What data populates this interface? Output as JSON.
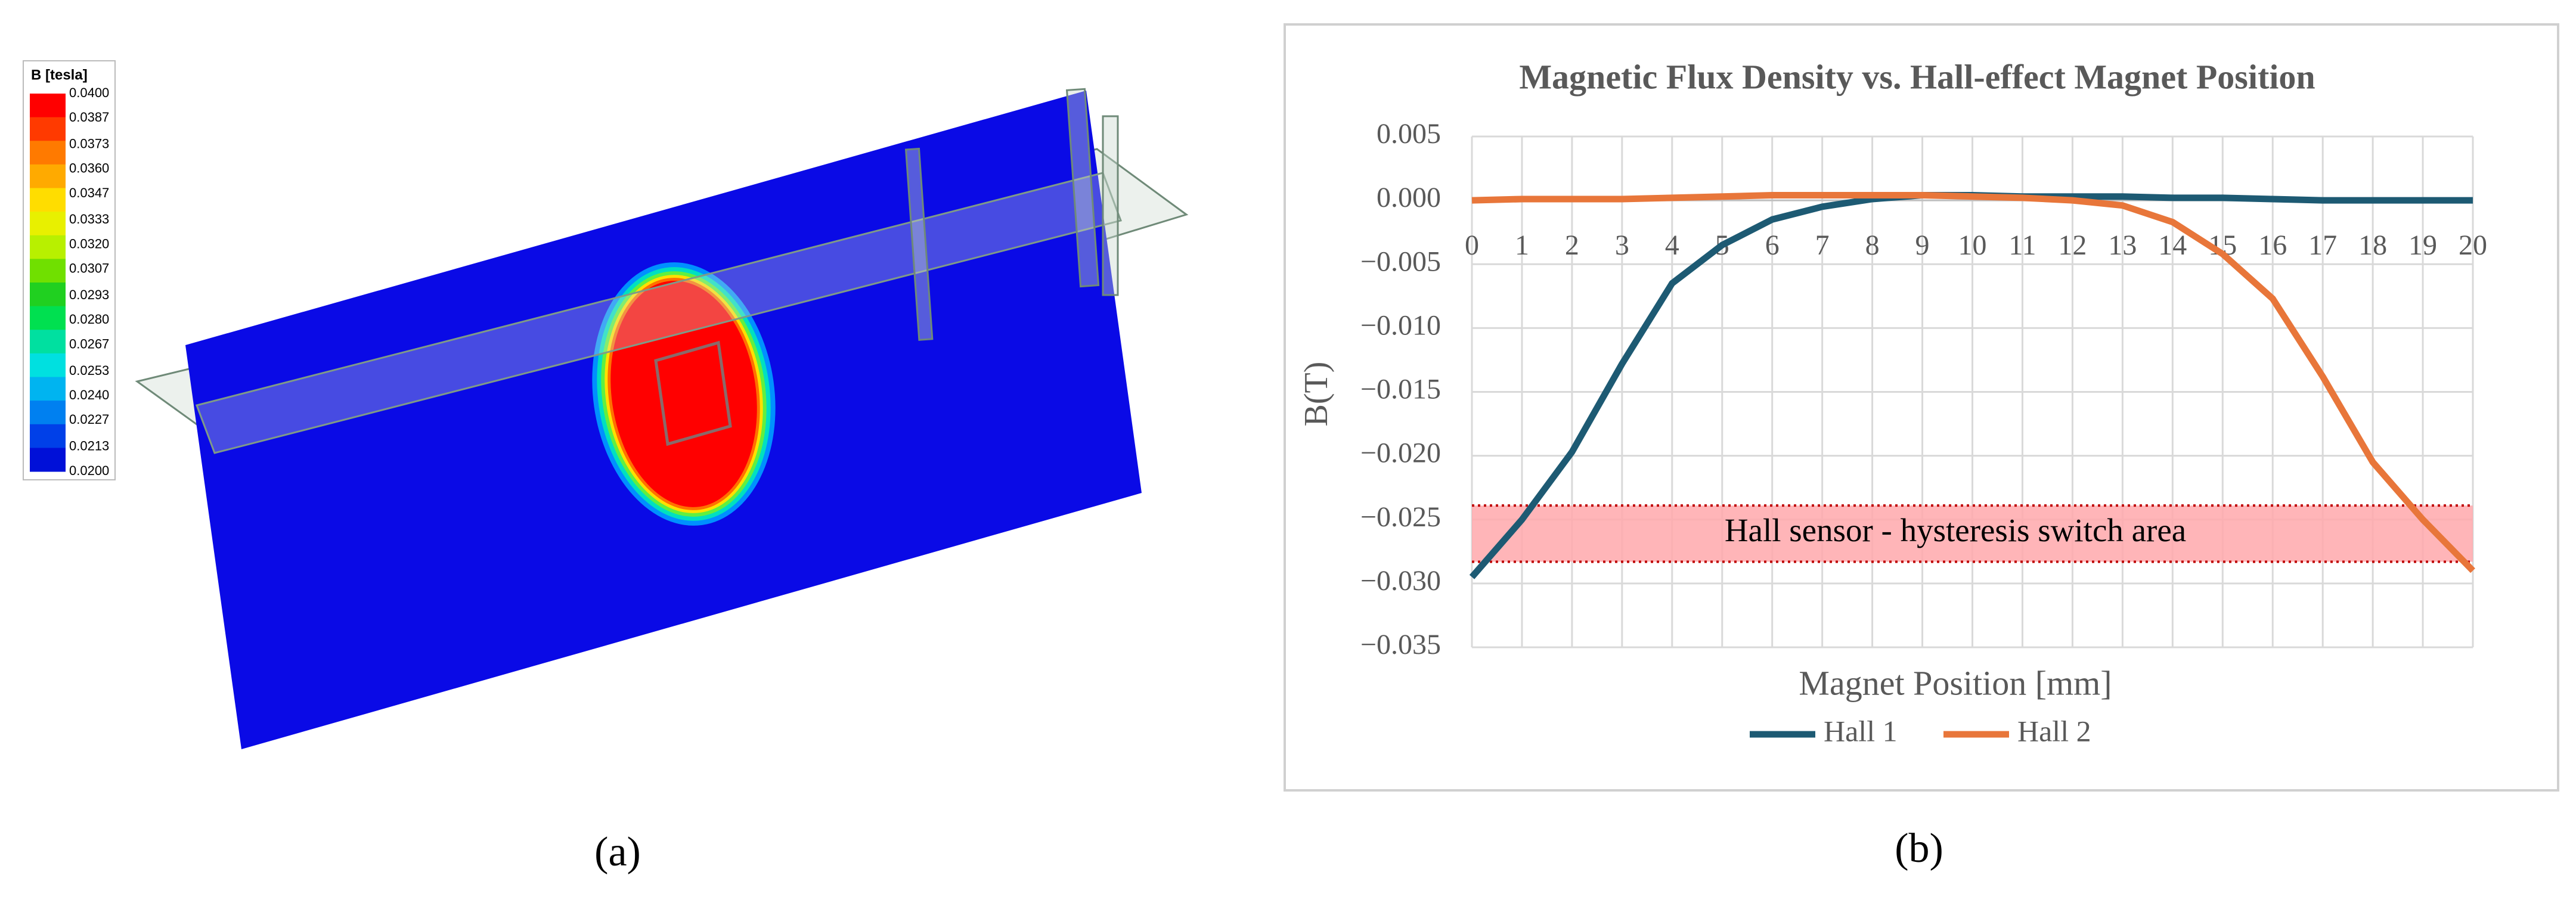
{
  "chart_data": [
    {
      "type": "colorbar",
      "panel_label": "(a)",
      "title": "B [tesla]",
      "ylim": [
        0.02,
        0.04
      ],
      "yticks": [
        {
          "value": 0.04,
          "label": "0.0400"
        },
        0.0387,
        0.0373,
        {
          "value": 0.036,
          "label": "0.0360"
        },
        0.0347,
        0.0333,
        {
          "value": 0.032,
          "label": "0.0320"
        },
        0.0307,
        0.0293,
        {
          "value": 0.028,
          "label": "0.0280"
        },
        0.0267,
        0.0253,
        {
          "value": 0.024,
          "label": "0.0240"
        },
        0.0227,
        0.0213,
        {
          "value": 0.02,
          "label": "0.0200"
        }
      ],
      "colors": [
        "#ff0000",
        "#ff3a00",
        "#ff7a00",
        "#ffaa00",
        "#ffdd00",
        "#e8f000",
        "#b8f000",
        "#70e000",
        "#20d020",
        "#00e050",
        "#00e0a0",
        "#00e0e0",
        "#00b4f0",
        "#0080f0",
        "#0040e8",
        "#0010d8"
      ]
    },
    {
      "type": "line",
      "panel_label": "(b)",
      "title": "Magnetic Flux Density vs. Hall-effect Magnet Position",
      "x_label": "Magnet Position [mm]",
      "y_label": "B(T)",
      "x": [
        0,
        1,
        2,
        3,
        4,
        5,
        6,
        7,
        8,
        9,
        10,
        11,
        12,
        13,
        14,
        15,
        16,
        17,
        18,
        19,
        20
      ],
      "xlim": [
        0,
        20
      ],
      "xticks": [
        0,
        1,
        2,
        3,
        4,
        5,
        6,
        7,
        8,
        9,
        10,
        11,
        12,
        13,
        14,
        15,
        16,
        17,
        18,
        19,
        20
      ],
      "ylim": [
        -0.035,
        0.005
      ],
      "yticks": [
        0.005,
        {
          "value": 0,
          "label": "0.000"
        },
        {
          "value": -0.005,
          "label": "−0.005"
        },
        {
          "value": -0.01,
          "label": "−0.010"
        },
        {
          "value": -0.015,
          "label": "−0.015"
        },
        {
          "value": -0.02,
          "label": "−0.020"
        },
        {
          "value": -0.025,
          "label": "−0.025"
        },
        {
          "value": -0.03,
          "label": "−0.030"
        },
        {
          "value": -0.035,
          "label": "−0.035"
        }
      ],
      "grid": true,
      "legend": "bottom",
      "band": {
        "label": "Hall sensor - hysteresis switch area",
        "from": -0.0283,
        "to": -0.0239,
        "color": "#ffa8ac"
      },
      "series": [
        {
          "name": "Hall 1",
          "color": "#1d5a73",
          "values": [
            -0.0295,
            -0.025,
            -0.0197,
            -0.0128,
            -0.0065,
            -0.0035,
            -0.0015,
            -0.0005,
            0.0001,
            0.0004,
            0.0004,
            0.0003,
            0.0003,
            0.0003,
            0.0002,
            0.0002,
            0.0001,
            0,
            0,
            0,
            0
          ]
        },
        {
          "name": "Hall 2",
          "color": "#e8763a",
          "values": [
            0,
            0.0001,
            0.0001,
            0.0001,
            0.0002,
            0.0003,
            0.0004,
            0.0004,
            0.0004,
            0.0004,
            0.0003,
            0.0002,
            0,
            -0.0004,
            -0.0017,
            -0.0042,
            -0.0077,
            -0.0138,
            -0.0205,
            -0.025,
            -0.029
          ]
        }
      ]
    }
  ]
}
